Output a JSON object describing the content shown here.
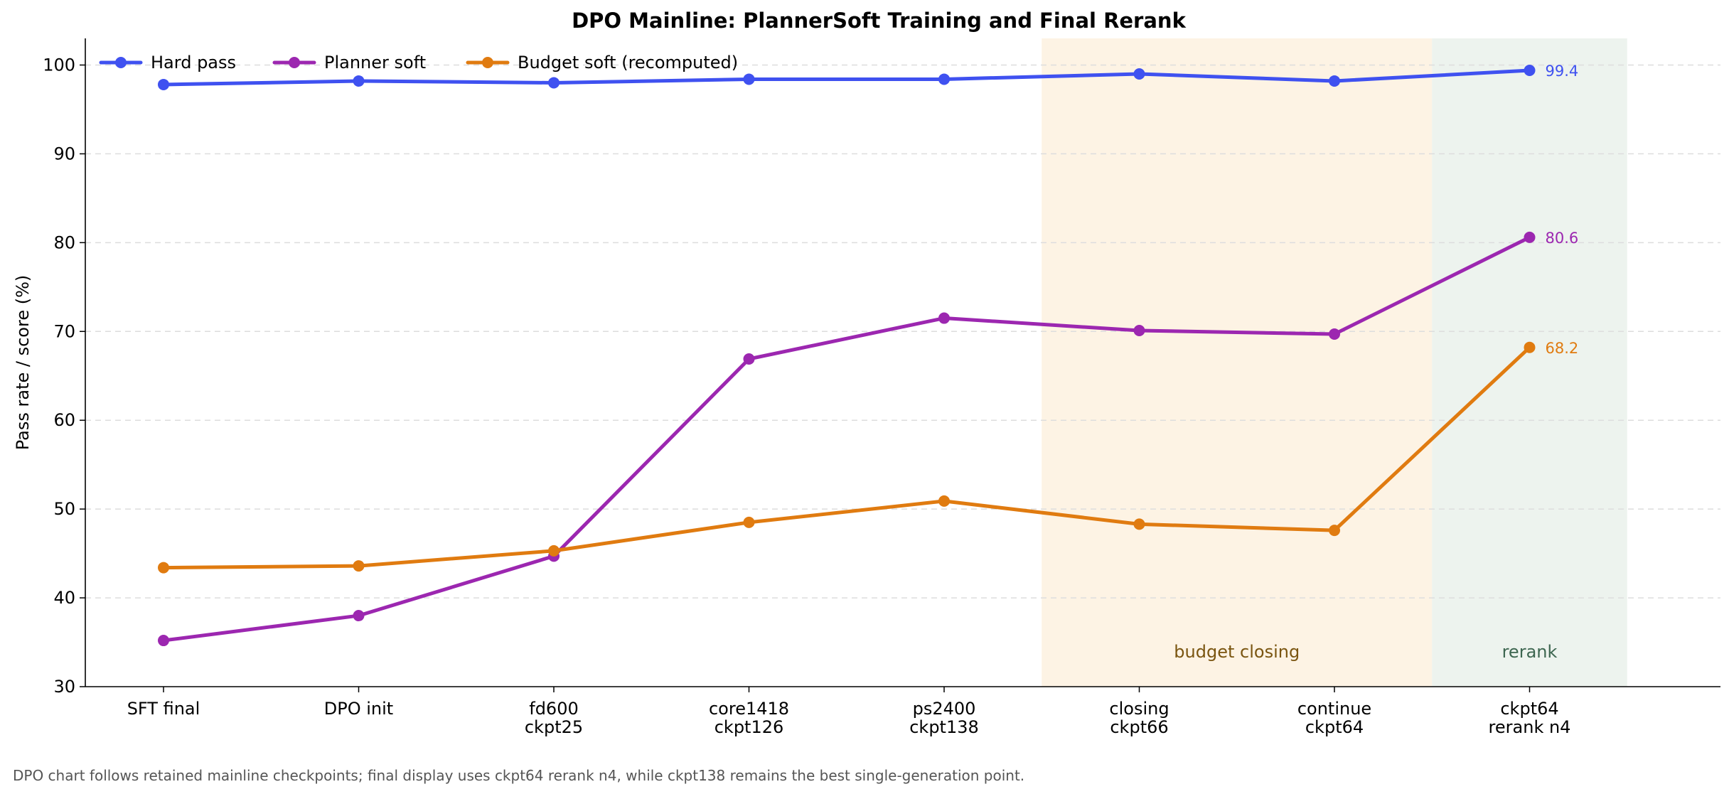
{
  "chart_data": {
    "type": "line",
    "title": "DPO Mainline: PlannerSoft Training and Final Rerank",
    "xlabel": "",
    "ylabel": "Pass rate / score (%)",
    "ylim": [
      30,
      103
    ],
    "yticks": [
      30,
      40,
      50,
      60,
      70,
      80,
      90,
      100
    ],
    "grid": "horizontal dashed",
    "legend_position": "top-left",
    "categories": [
      [
        "SFT final"
      ],
      [
        "DPO init"
      ],
      [
        "fd600",
        "ckpt25"
      ],
      [
        "core1418",
        "ckpt126"
      ],
      [
        "ps2400",
        "ckpt138"
      ],
      [
        "closing",
        "ckpt66"
      ],
      [
        "continue",
        "ckpt64"
      ],
      [
        "ckpt64",
        "rerank n4"
      ]
    ],
    "series": [
      {
        "name": "Hard pass",
        "color": "#3f51f0",
        "values": [
          97.8,
          98.2,
          98.0,
          98.4,
          98.4,
          99.0,
          98.2,
          99.4
        ],
        "end_label": "99.4"
      },
      {
        "name": "Planner soft",
        "color": "#9c27b0",
        "values": [
          35.2,
          38.0,
          44.7,
          66.9,
          71.5,
          70.1,
          69.7,
          80.6
        ],
        "end_label": "80.6"
      },
      {
        "name": "Budget soft (recomputed)",
        "color": "#e07b10",
        "values": [
          43.4,
          43.6,
          45.3,
          48.5,
          50.9,
          48.3,
          47.6,
          68.2
        ],
        "end_label": "68.2"
      }
    ],
    "regions": [
      {
        "label": "budget closing",
        "from_index": 5,
        "to_index": 6,
        "fill": "#fdf3e4",
        "text_color": "#7a5510"
      },
      {
        "label": "rerank",
        "from_index": 7,
        "to_index": 7,
        "fill": "#edf3ee",
        "text_color": "#3d6650"
      }
    ],
    "footnote": "DPO chart follows retained mainline checkpoints; final display uses ckpt64 rerank n4, while ckpt138 remains the best single-generation point."
  }
}
